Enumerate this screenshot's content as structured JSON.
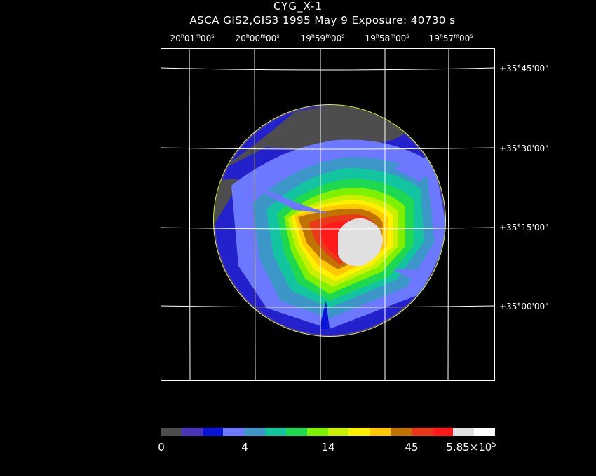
{
  "header": {
    "title": "CYG_X-1",
    "subtitle": "ASCA GIS2,GIS3    1995 May  9    Exposure: 40730 s"
  },
  "ra_axis": [
    {
      "h": "20",
      "m": "01",
      "s": "00"
    },
    {
      "h": "20",
      "m": "00",
      "s": "00"
    },
    {
      "h": "19",
      "m": "59",
      "s": "00"
    },
    {
      "h": "19",
      "m": "58",
      "s": "00"
    },
    {
      "h": "19",
      "m": "57",
      "s": "00"
    }
  ],
  "dec_axis": [
    "+35°45'00\"",
    "+35°30'00\"",
    "+35°15'00\"",
    "+35°00'00\""
  ],
  "colorbar": {
    "colors": [
      "#4d4d4d",
      "#4a35b8",
      "#0a14d8",
      "#6b78ff",
      "#3d96c8",
      "#13c4a0",
      "#1ed850",
      "#7ef000",
      "#c8f000",
      "#fff000",
      "#ffc800",
      "#c07400",
      "#e83a18",
      "#ff1a1a",
      "#e0e0e0",
      "#ffffff"
    ],
    "labels": {
      "l0": "0",
      "l1": "4",
      "l2": "14",
      "l3": "45",
      "l4_mantissa": "5.85×10",
      "l4_exp": "5"
    }
  }
}
